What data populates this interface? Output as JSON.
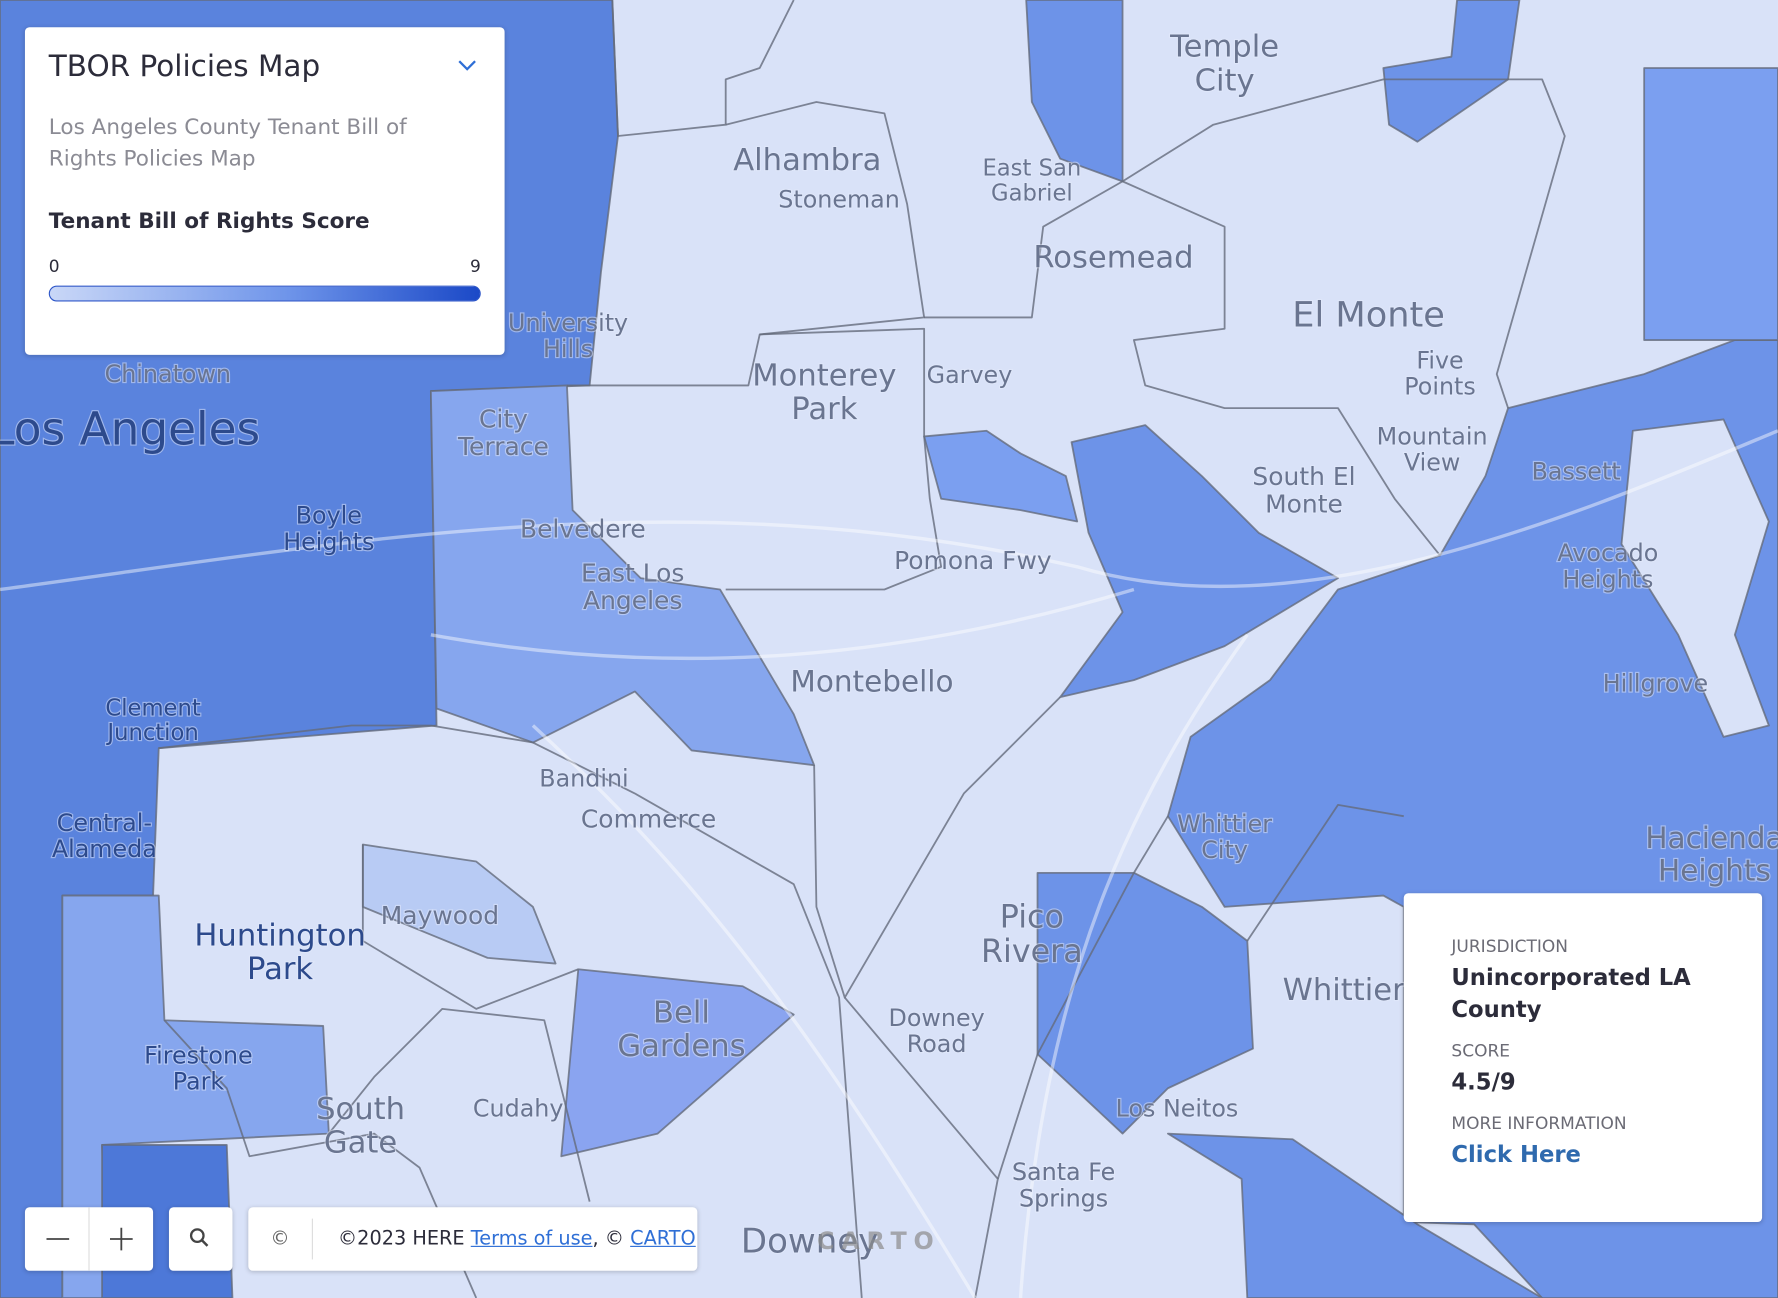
{
  "legend": {
    "title": "TBOR Policies Map",
    "description": "Los Angeles County Tenant Bill of Rights Policies Map",
    "scale_title": "Tenant Bill of Rights Score",
    "min_label": "0",
    "max_label": "9"
  },
  "popup": {
    "fields": [
      {
        "label": "JURISDICTION",
        "value": "Unincorporated LA County"
      },
      {
        "label": "SCORE",
        "value": "4.5/9"
      },
      {
        "label": "MORE INFORMATION",
        "value": "Click Here"
      }
    ]
  },
  "attribution": {
    "icon": "©",
    "copyright": "©2023 HERE",
    "terms": "Terms of use",
    "separator": ", ©",
    "carto": "CARTO"
  },
  "carto_logo": "CARTO",
  "map_labels": [
    {
      "lines": [
        "Alhambra"
      ]
    },
    {
      "lines": [
        "Monterey",
        "Park"
      ]
    },
    {
      "lines": [
        "Montebello"
      ]
    },
    {
      "lines": [
        "El Monte"
      ]
    },
    {
      "lines": [
        "Rosemead"
      ]
    },
    {
      "lines": [
        "Temple",
        "City"
      ]
    },
    {
      "lines": [
        "Pico",
        "Rivera"
      ]
    },
    {
      "lines": [
        "Bell",
        "Gardens"
      ]
    },
    {
      "lines": [
        "Huntington",
        "Park"
      ]
    },
    {
      "lines": [
        "South",
        "Gate"
      ]
    },
    {
      "lines": [
        "Commerce"
      ]
    },
    {
      "lines": [
        "Los Angeles"
      ]
    },
    {
      "lines": [
        "Downey"
      ]
    },
    {
      "lines": [
        "Whittier"
      ]
    },
    {
      "lines": [
        "Maywood"
      ]
    },
    {
      "lines": [
        "Cudahy"
      ]
    },
    {
      "lines": [
        "Chinatown"
      ]
    },
    {
      "lines": [
        "City",
        "Terrace"
      ]
    },
    {
      "lines": [
        "Belvedere"
      ]
    },
    {
      "lines": [
        "East Los",
        "Angeles"
      ]
    },
    {
      "lines": [
        "Boyle",
        "Heights"
      ]
    },
    {
      "lines": [
        "Hacienda",
        "Heights"
      ]
    },
    {
      "lines": [
        "Santa Fe",
        "Springs"
      ]
    },
    {
      "lines": [
        "South El",
        "Monte"
      ]
    },
    {
      "lines": [
        "Avocado",
        "Heights"
      ]
    },
    {
      "lines": [
        "Bandini"
      ]
    },
    {
      "lines": [
        "Garvey"
      ]
    },
    {
      "lines": [
        "Los Neitos"
      ]
    },
    {
      "lines": [
        "Whittier",
        "City"
      ]
    },
    {
      "lines": [
        "Mountain",
        "View"
      ]
    },
    {
      "lines": [
        "Stoneman"
      ]
    },
    {
      "lines": [
        "University",
        "Hills"
      ]
    },
    {
      "lines": [
        "Central-",
        "Alameda"
      ]
    },
    {
      "lines": [
        "Clement",
        "Junction"
      ]
    },
    {
      "lines": [
        "Firestone",
        "Park"
      ]
    },
    {
      "lines": [
        "Downey",
        "Road"
      ]
    },
    {
      "lines": [
        "Hillgrove"
      ]
    },
    {
      "lines": [
        "Bassett"
      ]
    },
    {
      "lines": [
        "Five",
        "Points"
      ]
    },
    {
      "lines": [
        "East San",
        "Gabriel"
      ]
    },
    {
      "lines": [
        "Pomona Fwy"
      ]
    },
    {
      "lines": [
        "Santa Fe",
        "Springs"
      ]
    }
  ]
}
